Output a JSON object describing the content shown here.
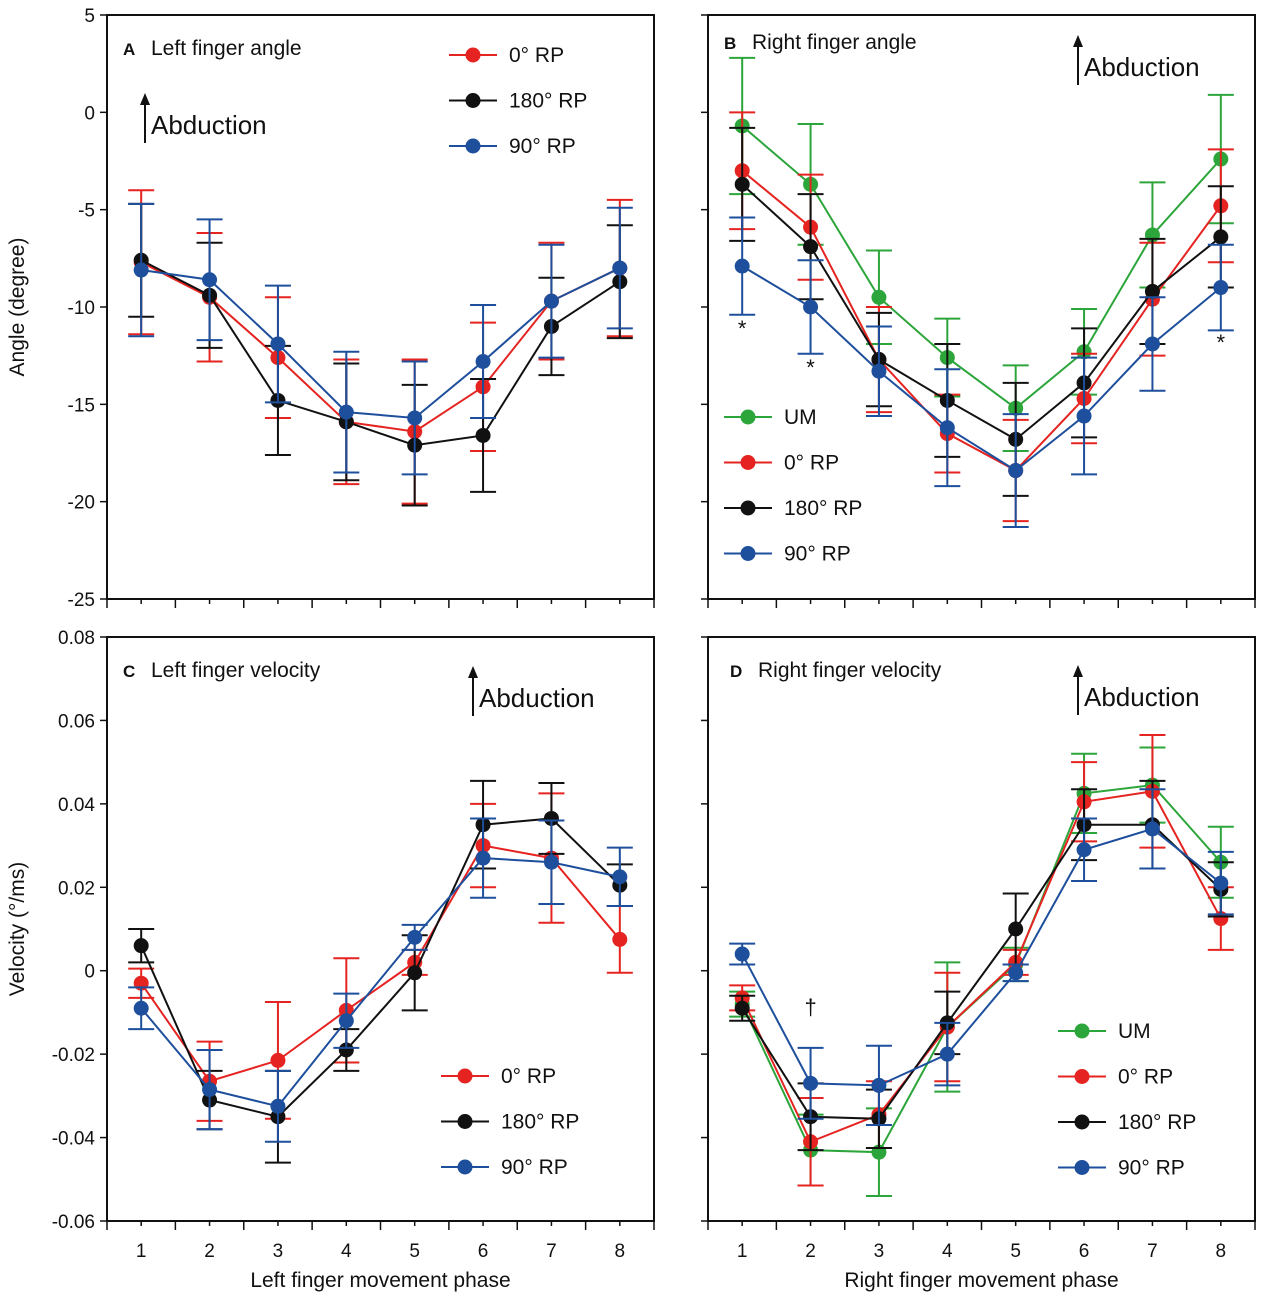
{
  "colors": {
    "UM": "#2ca53a",
    "0° RP": "#e52421",
    "180° RP": "#111111",
    "90° RP": "#1e4f9c"
  },
  "chart_data": [
    {
      "type": "line",
      "panel_letter": "A",
      "title": "Left finger angle",
      "annotation": "Abduction",
      "ylabel": "Angle (degree)",
      "xlabel": "",
      "x": [
        1,
        2,
        3,
        4,
        5,
        6,
        7,
        8
      ],
      "ylim": [
        -25,
        5
      ],
      "yticks": [
        5,
        0,
        -5,
        -10,
        -15,
        -20,
        -25
      ],
      "ytick_labels": [
        "5",
        "0",
        "-5",
        "-10",
        "-15",
        "-20",
        "-25"
      ],
      "show_x_tick_labels": false,
      "legend_position": "top-right",
      "legend": [
        "0° RP",
        "180° RP",
        "90° RP"
      ],
      "series": [
        {
          "name": "0° RP",
          "values": [
            -7.7,
            -9.5,
            -12.6,
            -15.9,
            -16.4,
            -14.1,
            -9.7,
            -8.0
          ],
          "err": [
            3.7,
            3.3,
            3.1,
            3.2,
            3.7,
            3.3,
            3.0,
            3.5
          ]
        },
        {
          "name": "180° RP",
          "values": [
            -7.6,
            -9.4,
            -14.8,
            -15.9,
            -17.1,
            -16.6,
            -11.0,
            -8.7
          ],
          "err": [
            2.9,
            2.7,
            2.8,
            3.0,
            3.1,
            2.9,
            2.5,
            2.9
          ]
        },
        {
          "name": "90° RP",
          "values": [
            -8.1,
            -8.6,
            -11.9,
            -15.4,
            -15.7,
            -12.8,
            -9.7,
            -8.0
          ],
          "err": [
            3.4,
            3.1,
            3.0,
            3.1,
            2.9,
            2.9,
            2.9,
            3.1
          ]
        }
      ],
      "significance_marks": []
    },
    {
      "type": "line",
      "panel_letter": "B",
      "title": "Right finger angle",
      "annotation": "Abduction",
      "ylabel": "",
      "xlabel": "",
      "x": [
        1,
        2,
        3,
        4,
        5,
        6,
        7,
        8
      ],
      "ylim": [
        -25,
        5
      ],
      "yticks": [
        5,
        0,
        -5,
        -10,
        -15,
        -20,
        -25
      ],
      "ytick_labels": [],
      "show_x_tick_labels": false,
      "legend_position": "bottom-left",
      "legend": [
        "UM",
        "0° RP",
        "180° RP",
        "90° RP"
      ],
      "series": [
        {
          "name": "UM",
          "values": [
            -0.7,
            -3.7,
            -9.5,
            -12.6,
            -15.2,
            -12.3,
            -6.3,
            -2.4
          ],
          "err": [
            3.5,
            3.1,
            2.4,
            2.0,
            2.2,
            2.2,
            2.7,
            3.3
          ]
        },
        {
          "name": "0° RP",
          "values": [
            -3.0,
            -5.9,
            -12.7,
            -16.5,
            -18.4,
            -14.7,
            -9.6,
            -4.8
          ],
          "err": [
            3.0,
            2.7,
            2.7,
            2.0,
            2.6,
            2.3,
            2.9,
            2.9
          ]
        },
        {
          "name": "180° RP",
          "values": [
            -3.7,
            -6.9,
            -12.7,
            -14.8,
            -16.8,
            -13.9,
            -9.2,
            -6.4
          ],
          "err": [
            2.9,
            2.7,
            2.4,
            2.9,
            2.9,
            2.8,
            2.7,
            2.6
          ]
        },
        {
          "name": "90° RP",
          "values": [
            -7.9,
            -10.0,
            -13.3,
            -16.2,
            -18.4,
            -15.6,
            -11.9,
            -9.0
          ],
          "err": [
            2.5,
            2.4,
            2.3,
            3.0,
            2.9,
            3.0,
            2.4,
            2.2
          ]
        }
      ],
      "significance_marks": [
        {
          "x": 1,
          "y": -11.5,
          "text": "*"
        },
        {
          "x": 2,
          "y": -13.5,
          "text": "*"
        },
        {
          "x": 8,
          "y": -12.2,
          "text": "*"
        }
      ]
    },
    {
      "type": "line",
      "panel_letter": "C",
      "title": "Left finger velocity",
      "annotation": "Abduction",
      "ylabel": "Velocity (°/ms)",
      "xlabel": "Left finger movement phase",
      "x": [
        1,
        2,
        3,
        4,
        5,
        6,
        7,
        8
      ],
      "ylim": [
        -0.06,
        0.08
      ],
      "yticks": [
        0.08,
        0.06,
        0.04,
        0.02,
        0,
        -0.02,
        -0.04,
        -0.06
      ],
      "ytick_labels": [
        "0.08",
        "0.06",
        "0.04",
        "0.02",
        "0",
        "-0.02",
        "-0.04",
        "-0.06"
      ],
      "show_x_tick_labels": true,
      "xtick_labels": [
        "1",
        "2",
        "3",
        "4",
        "5",
        "6",
        "7",
        "8"
      ],
      "legend_position": "bottom-right",
      "legend": [
        "0° RP",
        "180° RP",
        "90° RP"
      ],
      "series": [
        {
          "name": "0° RP",
          "values": [
            -0.003,
            -0.0265,
            -0.0215,
            -0.0095,
            0.002,
            0.03,
            0.027,
            0.0075
          ],
          "err": [
            0.0035,
            0.0095,
            0.014,
            0.0125,
            0.003,
            0.01,
            0.0155,
            0.008
          ]
        },
        {
          "name": "180° RP",
          "values": [
            0.006,
            -0.031,
            -0.035,
            -0.019,
            -0.0005,
            0.035,
            0.0365,
            0.0205
          ],
          "err": [
            0.004,
            0.007,
            0.011,
            0.005,
            0.009,
            0.0105,
            0.0085,
            0.005
          ]
        },
        {
          "name": "90° RP",
          "values": [
            -0.009,
            -0.0285,
            -0.0325,
            -0.012,
            0.008,
            0.027,
            0.026,
            0.0225
          ],
          "err": [
            0.005,
            0.0095,
            0.0085,
            0.0065,
            0.003,
            0.0095,
            0.01,
            0.007
          ]
        }
      ],
      "significance_marks": []
    },
    {
      "type": "line",
      "panel_letter": "D",
      "title": "Right finger velocity",
      "annotation": "Abduction",
      "ylabel": "",
      "xlabel": "Right finger movement phase",
      "x": [
        1,
        2,
        3,
        4,
        5,
        6,
        7,
        8
      ],
      "ylim": [
        -0.06,
        0.08
      ],
      "yticks": [
        0.08,
        0.06,
        0.04,
        0.02,
        0,
        -0.02,
        -0.04,
        -0.06
      ],
      "ytick_labels": [],
      "show_x_tick_labels": true,
      "xtick_labels": [
        "1",
        "2",
        "3",
        "4",
        "5",
        "6",
        "7",
        "8"
      ],
      "legend_position": "bottom-right",
      "legend": [
        "UM",
        "0° RP",
        "180° RP",
        "90° RP"
      ],
      "series": [
        {
          "name": "UM",
          "values": [
            -0.008,
            -0.043,
            -0.0435,
            -0.0135,
            0.0015,
            0.0425,
            0.0445,
            0.026
          ],
          "err": [
            0.003,
            0.0085,
            0.0105,
            0.0155,
            0.004,
            0.0095,
            0.009,
            0.0085
          ]
        },
        {
          "name": "0° RP",
          "values": [
            -0.0065,
            -0.041,
            -0.0345,
            -0.0135,
            0.002,
            0.0405,
            0.043,
            0.0125
          ],
          "err": [
            0.003,
            0.0105,
            0.008,
            0.013,
            0.003,
            0.0095,
            0.0135,
            0.0075
          ]
        },
        {
          "name": "180° RP",
          "values": [
            -0.009,
            -0.035,
            -0.0355,
            -0.0125,
            0.01,
            0.035,
            0.035,
            0.0195
          ],
          "err": [
            0.003,
            0.008,
            0.007,
            0.0075,
            0.0085,
            0.0085,
            0.0105,
            0.0065
          ]
        },
        {
          "name": "90° RP",
          "values": [
            0.004,
            -0.027,
            -0.0275,
            -0.02,
            -0.0005,
            0.029,
            0.034,
            0.021
          ],
          "err": [
            0.0025,
            0.0085,
            0.0095,
            0.0075,
            0.002,
            0.0075,
            0.0095,
            0.0075
          ]
        }
      ],
      "significance_marks": [
        {
          "x": 2,
          "y": -0.0105,
          "text": "†"
        }
      ]
    }
  ]
}
